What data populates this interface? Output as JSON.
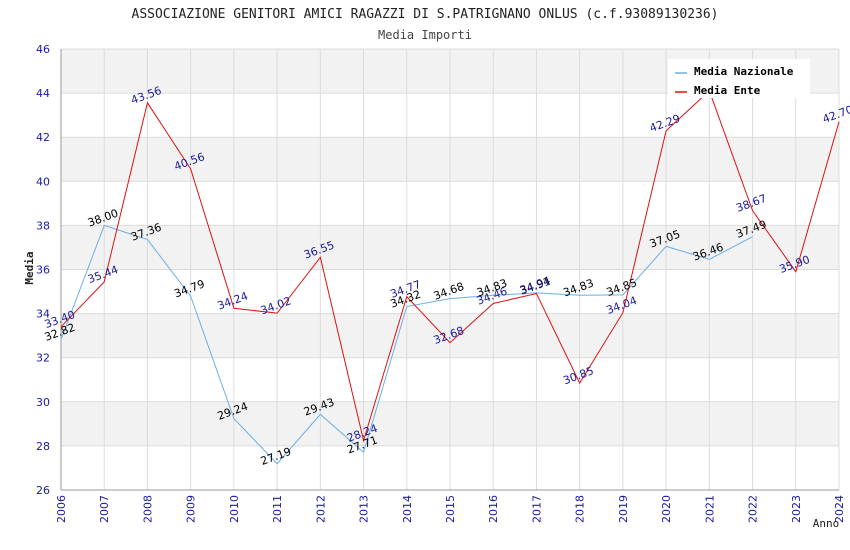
{
  "chart_data": {
    "type": "line",
    "title": "ASSOCIAZIONE GENITORI AMICI RAGAZZI DI S.PATRIGNANO ONLUS (c.f.93089130236)",
    "subtitle": "Media Importi",
    "xlabel": "Anno",
    "ylabel": "Media",
    "ylim": [
      26,
      46
    ],
    "yticks": [
      26,
      28,
      30,
      32,
      34,
      36,
      38,
      40,
      42,
      44,
      46
    ],
    "x": [
      2006,
      2007,
      2008,
      2009,
      2010,
      2011,
      2012,
      2013,
      2014,
      2015,
      2016,
      2017,
      2018,
      2019,
      2020,
      2021,
      2022,
      2023,
      2024
    ],
    "series": [
      {
        "name": "Media Nazionale",
        "color": "#6ab0e8",
        "label_color": "#000000",
        "values": [
          32.82,
          38.0,
          37.36,
          34.79,
          29.24,
          27.19,
          29.43,
          27.71,
          34.32,
          34.68,
          34.83,
          34.94,
          34.83,
          34.85,
          37.05,
          36.46,
          37.49,
          null,
          null
        ],
        "labels": [
          "32.82",
          "38.00",
          "37.36",
          "34.79",
          "29.24",
          "27.19",
          "29.43",
          "27.71",
          "34.32",
          "34.68",
          "34.83",
          "34.94",
          "34.83",
          "34.85",
          "37.05",
          "36.46",
          "37.49",
          null,
          null
        ]
      },
      {
        "name": "Media Ente",
        "color": "#e01010",
        "label_color": "#1a1a9c",
        "values": [
          33.4,
          35.44,
          43.56,
          40.56,
          34.24,
          34.02,
          36.55,
          28.24,
          34.77,
          32.68,
          34.46,
          34.91,
          30.85,
          34.04,
          42.29,
          44.1,
          38.67,
          35.9,
          42.7
        ],
        "labels": [
          "33.40",
          "35.44",
          "43.56",
          "40.56",
          "34.24",
          "34.02",
          "36.55",
          "28.24",
          "34.77",
          "32.68",
          "34.46",
          "34.91",
          "30.85",
          "34.04",
          "42.29",
          null,
          "38.67",
          "35.90",
          "42.70"
        ]
      }
    ],
    "legend_position": "top-right",
    "grid": true
  }
}
